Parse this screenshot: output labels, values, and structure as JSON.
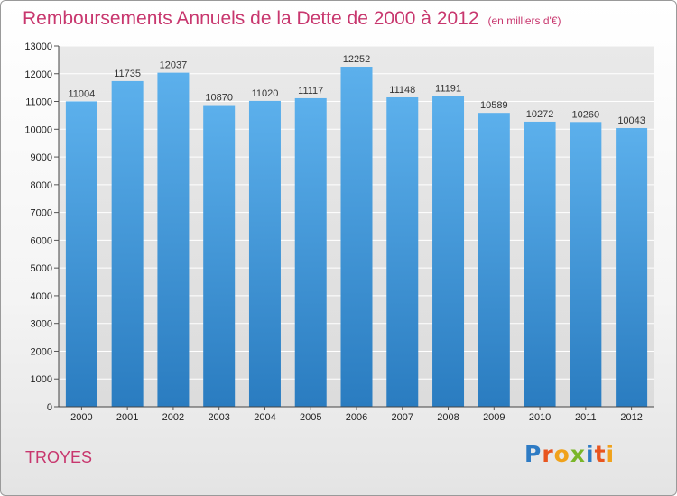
{
  "title": {
    "main": "Remboursements Annuels de la Dette de 2000 à 2012",
    "unit": "(en milliers d'€)"
  },
  "city": "TROYES",
  "logo": {
    "letters": [
      {
        "ch": "P",
        "color": "#2e7bc4"
      },
      {
        "ch": "r",
        "color": "#e8551f"
      },
      {
        "ch": "o",
        "color": "#f0a21b"
      },
      {
        "ch": "x",
        "color": "#7ab629"
      },
      {
        "ch": "i",
        "color": "#2e7bc4"
      },
      {
        "ch": "t",
        "color": "#e8551f"
      },
      {
        "ch": "i",
        "color": "#f0a21b"
      }
    ]
  },
  "chart_data": {
    "type": "bar",
    "title": "Remboursements Annuels de la Dette de 2000 à 2012",
    "subtitle": "(en milliers d'€)",
    "categories": [
      "2000",
      "2001",
      "2002",
      "2003",
      "2004",
      "2005",
      "2006",
      "2007",
      "2008",
      "2009",
      "2010",
      "2011",
      "2012"
    ],
    "values": [
      11004,
      11735,
      12037,
      10870,
      11020,
      11117,
      12252,
      11148,
      11191,
      10589,
      10272,
      10260,
      10043
    ],
    "ylim": [
      0,
      13000
    ],
    "yticks": [
      0,
      1000,
      2000,
      3000,
      4000,
      5000,
      6000,
      7000,
      8000,
      9000,
      10000,
      11000,
      12000,
      13000
    ],
    "grid": true,
    "data_labels": true,
    "bar_color": "#3f95d9"
  }
}
